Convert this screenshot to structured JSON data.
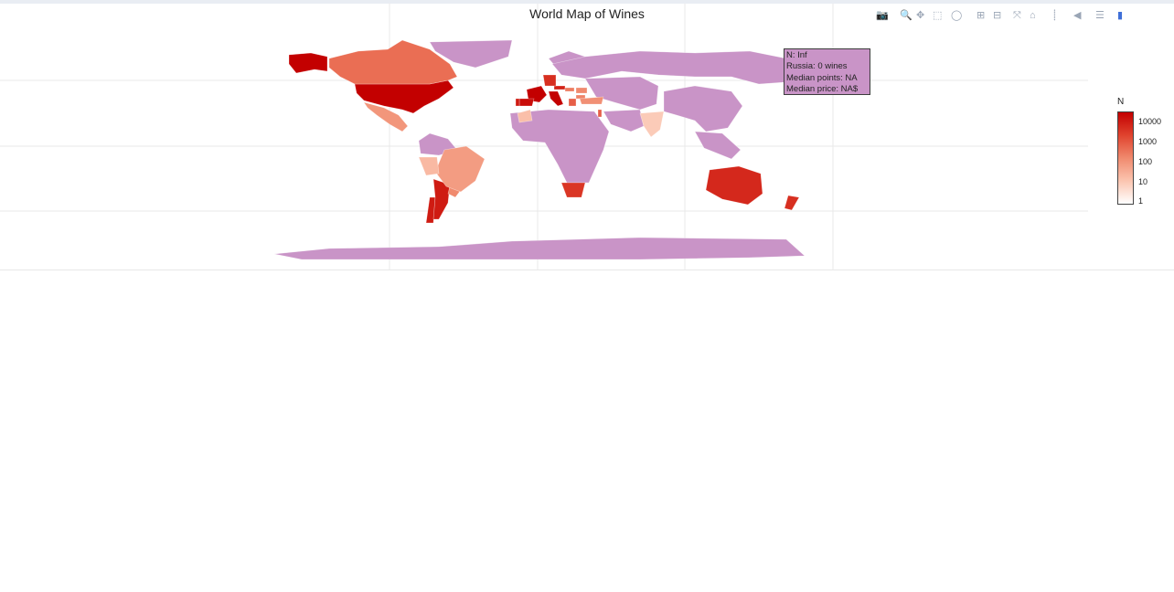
{
  "title": "World Map of Wines",
  "toolbar": {
    "icons": [
      "camera-icon",
      "zoom-icon",
      "pan-icon",
      "box-select-icon",
      "lasso-icon",
      "zoom-in-icon",
      "zoom-out-icon",
      "autoscale-icon",
      "reset-icon",
      "spike-icon",
      "hover-closest-icon",
      "hover-compare-icon",
      "plotly-logo-icon"
    ]
  },
  "tooltip": {
    "line1": "N:        Inf",
    "line2": "Russia: 0 wines",
    "line3": "Median points: NA",
    "line4": "Median price: NA$"
  },
  "colorbar": {
    "title": "N",
    "ticks": [
      "10000",
      "1000",
      "100",
      "10",
      "1"
    ],
    "colors": [
      "#c30000",
      "#e0432e",
      "#f08a6e",
      "#fbc5b0",
      "#ffffff"
    ]
  },
  "colors": {
    "no_data": "#c994c7",
    "grid": "#e8e8e8"
  },
  "map_data": {
    "type": "choropleth",
    "scale": "log",
    "countries": [
      {
        "name": "United States",
        "level": 4.7
      },
      {
        "name": "France",
        "level": 4.2
      },
      {
        "name": "Italy",
        "level": 4.2
      },
      {
        "name": "Spain",
        "level": 3.8
      },
      {
        "name": "Portugal",
        "level": 3.6
      },
      {
        "name": "Chile",
        "level": 3.6
      },
      {
        "name": "Argentina",
        "level": 3.6
      },
      {
        "name": "Austria",
        "level": 3.5
      },
      {
        "name": "Australia",
        "level": 3.4
      },
      {
        "name": "Germany",
        "level": 3.3
      },
      {
        "name": "New Zealand",
        "level": 3.3
      },
      {
        "name": "South Africa",
        "level": 3.2
      },
      {
        "name": "Israel",
        "level": 2.6
      },
      {
        "name": "Greece",
        "level": 2.6
      },
      {
        "name": "Canada",
        "level": 2.4
      },
      {
        "name": "Hungary",
        "level": 2.2
      },
      {
        "name": "Bulgaria",
        "level": 2.1
      },
      {
        "name": "Romania",
        "level": 2.0
      },
      {
        "name": "Uruguay",
        "level": 2.0
      },
      {
        "name": "Turkey",
        "level": 1.9
      },
      {
        "name": "Mexico",
        "level": 1.8
      },
      {
        "name": "Brazil",
        "level": 1.7
      },
      {
        "name": "Peru",
        "level": 1.2
      },
      {
        "name": "Morocco",
        "level": 1.1
      },
      {
        "name": "India",
        "level": 0.9
      },
      {
        "name": "Russia",
        "level": null
      }
    ]
  }
}
